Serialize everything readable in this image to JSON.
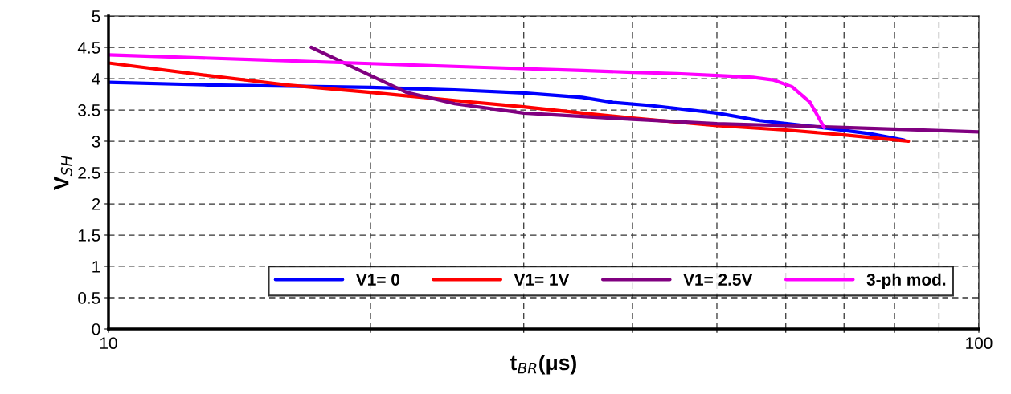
{
  "chart_data": {
    "type": "line",
    "xlabel": "t$_{BR}$(μs)",
    "ylabel": "V$_{SH}$",
    "log": "x",
    "xlim": [
      10,
      100
    ],
    "xticks": [
      10,
      {
        "value": 20,
        "label": null
      },
      {
        "value": 30,
        "label": null
      },
      {
        "value": 40,
        "label": null
      },
      {
        "value": 50,
        "label": null
      },
      {
        "value": 60,
        "label": null
      },
      {
        "value": 70,
        "label": null
      },
      {
        "value": 80,
        "label": null
      },
      {
        "value": 90,
        "label": null
      },
      100
    ],
    "ylim": [
      0,
      5
    ],
    "yticks": [
      0,
      0.5,
      1,
      1.5,
      2,
      2.5,
      3,
      3.5,
      4,
      4.5,
      5
    ],
    "grid": true,
    "legend": "bottom right",
    "marker": "none",
    "line_style": "solid",
    "series": [
      {
        "name": "V1= 0",
        "color": "#0000ff",
        "x": [
          10,
          13,
          20,
          25,
          30,
          35,
          38,
          42,
          50,
          56,
          66,
          75,
          82
        ],
        "values": [
          3.94,
          3.9,
          3.86,
          3.82,
          3.77,
          3.7,
          3.62,
          3.57,
          3.45,
          3.33,
          3.22,
          3.12,
          3.02
        ]
      },
      {
        "name": "V1= 1V",
        "color": "#ff0000",
        "x": [
          10,
          13,
          16,
          20,
          25,
          30,
          35,
          40,
          50,
          60,
          70,
          83
        ],
        "values": [
          4.25,
          4.05,
          3.9,
          3.78,
          3.65,
          3.55,
          3.45,
          3.37,
          3.25,
          3.18,
          3.1,
          3.0
        ]
      },
      {
        "name": "V1= 2.5V",
        "color": "#800080",
        "x": [
          17.1,
          20,
          22,
          25,
          30,
          40,
          50,
          60,
          70,
          100
        ],
        "values": [
          4.5,
          4.05,
          3.78,
          3.6,
          3.45,
          3.35,
          3.28,
          3.25,
          3.22,
          3.15
        ]
      },
      {
        "name": "3-ph mod.",
        "color": "#ff00ff",
        "x": [
          10,
          15,
          20,
          27,
          35,
          40,
          45,
          50,
          55,
          58,
          61,
          64,
          66.4
        ],
        "values": [
          4.38,
          4.3,
          4.24,
          4.18,
          4.13,
          4.1,
          4.08,
          4.05,
          4.02,
          3.98,
          3.87,
          3.62,
          3.22
        ]
      }
    ]
  }
}
